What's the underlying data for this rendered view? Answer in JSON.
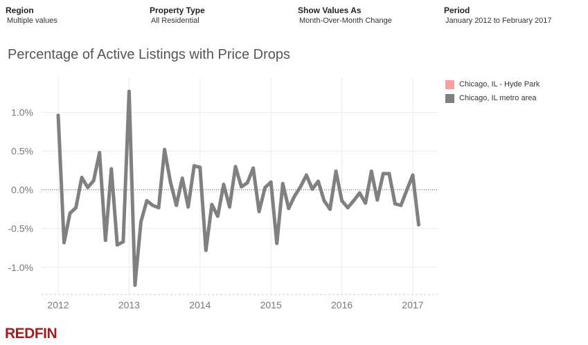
{
  "filters": {
    "region": {
      "label": "Region",
      "value": "Multiple values"
    },
    "property_type": {
      "label": "Property Type",
      "value": "All Residential"
    },
    "show_values_as": {
      "label": "Show Values As",
      "value": "Month-Over-Month Change"
    },
    "period": {
      "label": "Period",
      "value": "January 2012 to February 2017"
    }
  },
  "logo": "REDFIN",
  "chart_data": {
    "type": "line",
    "title": "Percentage of Active Listings with Price Drops",
    "xlabel": "",
    "ylabel": "",
    "x_ticks": [
      "2012",
      "2013",
      "2014",
      "2015",
      "2016",
      "2017"
    ],
    "y_ticks": [
      "1.0%",
      "0.5%",
      "0.0%",
      "-0.5%",
      "-1.0%"
    ],
    "ylim": [
      -1.35,
      1.45
    ],
    "grid": true,
    "legend_position": "top-right",
    "legend": [
      {
        "name": "Chicago, IL - Hyde Park",
        "color": "#f4a0a0"
      },
      {
        "name": "Chicago, IL metro area",
        "color": "#808080"
      }
    ],
    "series": [
      {
        "name": "Chicago, IL metro area",
        "color": "#808080",
        "x": [
          "2012-01",
          "2012-02",
          "2012-03",
          "2012-04",
          "2012-05",
          "2012-06",
          "2012-07",
          "2012-08",
          "2012-09",
          "2012-10",
          "2012-11",
          "2012-12",
          "2013-01",
          "2013-02",
          "2013-03",
          "2013-04",
          "2013-05",
          "2013-06",
          "2013-07",
          "2013-08",
          "2013-09",
          "2013-10",
          "2013-11",
          "2013-12",
          "2014-01",
          "2014-02",
          "2014-03",
          "2014-04",
          "2014-05",
          "2014-06",
          "2014-07",
          "2014-08",
          "2014-09",
          "2014-10",
          "2014-11",
          "2014-12",
          "2015-01",
          "2015-02",
          "2015-03",
          "2015-04",
          "2015-05",
          "2015-06",
          "2015-07",
          "2015-08",
          "2015-09",
          "2015-10",
          "2015-11",
          "2015-12",
          "2016-01",
          "2016-02",
          "2016-03",
          "2016-04",
          "2016-05",
          "2016-06",
          "2016-07",
          "2016-08",
          "2016-09",
          "2016-10",
          "2016-11",
          "2016-12",
          "2017-01",
          "2017-02"
        ],
        "values": [
          0.96,
          -0.68,
          -0.3,
          -0.23,
          0.16,
          0.03,
          0.12,
          0.48,
          -0.65,
          0.27,
          -0.71,
          -0.67,
          1.27,
          -1.23,
          -0.41,
          -0.14,
          -0.2,
          -0.23,
          0.52,
          0.1,
          -0.2,
          0.15,
          -0.22,
          0.31,
          0.29,
          -0.78,
          -0.19,
          -0.34,
          0.07,
          -0.22,
          0.3,
          0.04,
          0.09,
          0.28,
          -0.28,
          0.03,
          0.1,
          -0.69,
          0.08,
          -0.24,
          -0.08,
          0.04,
          0.19,
          0.01,
          0.11,
          -0.14,
          -0.25,
          0.24,
          -0.14,
          -0.23,
          -0.14,
          -0.04,
          -0.17,
          0.24,
          -0.13,
          0.21,
          0.21,
          -0.18,
          -0.2,
          0.0,
          0.19,
          -0.45
        ]
      }
    ]
  }
}
